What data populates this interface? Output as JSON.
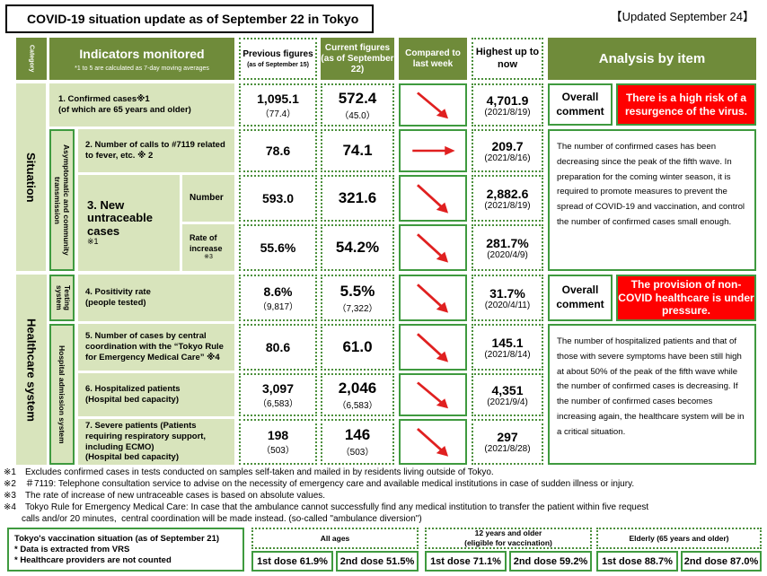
{
  "title": "COVID-19 situation update as of September 22 in Tokyo",
  "updated": "【Updated September 24】",
  "headers": {
    "category": "Category",
    "indicators": "Indicators monitored",
    "indicators_note": "*1 to 5 are calculated as 7-day moving averages",
    "previous": "Previous figures",
    "previous_sub": "(as of September 15)",
    "current": "Current figures (as of September 22)",
    "compared": "Compared to last week",
    "highest": "Highest up to now",
    "analysis": "Analysis by item"
  },
  "categories": {
    "situation": "Situation",
    "healthcare": "Healthcare system",
    "asymptomatic": "Asymptomatic and community transmission",
    "testing": "Testing system",
    "hospital": "Hospital admission system"
  },
  "rows": [
    {
      "label": "1. Confirmed cases※1",
      "label2": "(of which are 65 years and older)",
      "prev": "1,095.1",
      "prev_sub": "（77.4）",
      "cur": "572.4",
      "cur_sub": "（45.0）",
      "trend": "down",
      "high": "4,701.9",
      "high_date": "(2021/8/19)"
    },
    {
      "label": "2. Number of calls to #7119 related to fever, etc. ※ 2",
      "prev": "78.6",
      "cur": "74.1",
      "trend": "flat",
      "high": "209.7",
      "high_date": "(2021/8/16)"
    },
    {
      "label": "Number",
      "prev": "593.0",
      "cur": "321.6",
      "trend": "down",
      "high": "2,882.6",
      "high_date": "(2021/8/19)"
    },
    {
      "label": "Rate of increase",
      "label_note": "※3",
      "prev": "55.6%",
      "cur": "54.2%",
      "trend": "down",
      "high": "281.7%",
      "high_date": "(2020/4/9)"
    },
    {
      "label": "4. Positivity rate",
      "label2": "(people tested)",
      "prev": "8.6%",
      "prev_sub": "（9,817）",
      "cur": "5.5%",
      "cur_sub": "（7,322）",
      "trend": "down",
      "high": "31.7%",
      "high_date": "(2020/4/11)"
    },
    {
      "label": "5. Number of cases by central coordination with the “Tokyo Rule for Emergency Medical Care” ※4",
      "prev": "80.6",
      "cur": "61.0",
      "trend": "down",
      "high": "145.1",
      "high_date": "(2021/8/14)"
    },
    {
      "label": "6. Hospitalized patients",
      "label2": "(Hospital bed capacity)",
      "prev": "3,097",
      "prev_sub": "（6,583）",
      "cur": "2,046",
      "cur_sub": "（6,583）",
      "trend": "down",
      "high": "4,351",
      "high_date": "(2021/9/4)"
    },
    {
      "label": "7. Severe patients (Patients requiring respiratory support, including ECMO)",
      "label2": "(Hospital bed capacity)",
      "prev": "198",
      "prev_sub": "（503）",
      "cur": "146",
      "cur_sub": "（503）",
      "trend": "down",
      "high": "297",
      "high_date": "(2021/8/28)"
    }
  ],
  "untraceable": {
    "label": "3. New untraceable cases",
    "note": "※1"
  },
  "analysis": {
    "overall": "Overall comment",
    "situation_alert": "There is a high risk of a resurgence of the virus.",
    "situation_text": "The number of confirmed cases has been decreasing since the peak of the fifth wave. In preparation for the coming winter season, it is required to promote measures to prevent the spread of COVID-19 and vaccination, and control the number of confirmed cases small enough.",
    "healthcare_alert": "The provision of non-COVID healthcare is under pressure.",
    "healthcare_text": "The number of hospitalized patients and that of those with severe symptoms have been still high at about 50% of the peak of the fifth wave while the number of confirmed cases is decreasing. If the number of confirmed cases becomes increasing again, the healthcare system will be in a critical situation."
  },
  "notes": [
    "※1　Excludes confirmed cases in tests conducted on samples self-taken and mailed in by residents living outside of Tokyo.",
    "※2　＃7119: Telephone consultation service to advise on the necessity of emergency care and available medical institutions in case of sudden illness or injury.",
    "※3　The rate of increase of new untraceable cases is based on absolute values.",
    "※4　Tokyo Rule for Emergency Medical Care: In case that the ambulance cannot successfully find any medical institution to transfer the patient within five request",
    "　　calls and/or 20 minutes,  central coordination will be made instead. (so-called \"ambulance diversion\")"
  ],
  "vaccination": {
    "title": "Tokyo's vaccination situation (as of September 21)",
    "line2": "* Data is extracted from VRS",
    "line3": "* Healthcare providers are not counted",
    "groups": [
      {
        "name": "All ages",
        "name2": "",
        "d1": "1st dose 61.9%",
        "d2": "2nd dose 51.5%"
      },
      {
        "name": "12 years and older",
        "name2": "(eligible for vaccination)",
        "d1": "1st dose 71.1%",
        "d2": "2nd dose 59.2%"
      },
      {
        "name": "Elderly (65 years and older)",
        "name2": "",
        "d1": "1st dose 88.7%",
        "d2": "2nd dose 87.0%"
      }
    ]
  },
  "colors": {
    "header_green": "#6f8b3a",
    "light_green": "#d8e4bc",
    "border_green": "#3f9a3f",
    "alert_red": "#ff0000",
    "arrow_red": "#e02020"
  }
}
